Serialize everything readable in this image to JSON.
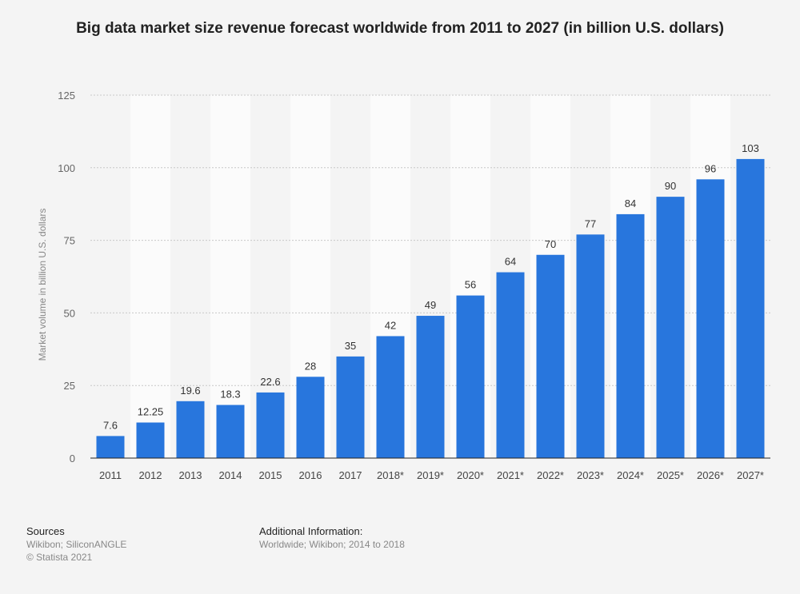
{
  "chart_data": {
    "type": "bar",
    "title": "Big data market size revenue forecast worldwide from 2011 to 2027 (in billion U.S. dollars)",
    "xlabel": "",
    "ylabel": "Market volume in billion U.S. dollars",
    "categories": [
      "2011",
      "2012",
      "2013",
      "2014",
      "2015",
      "2016",
      "2017",
      "2018*",
      "2019*",
      "2020*",
      "2021*",
      "2022*",
      "2023*",
      "2024*",
      "2025*",
      "2026*",
      "2027*"
    ],
    "values": [
      7.6,
      12.25,
      19.6,
      18.3,
      22.6,
      28,
      35,
      42,
      49,
      56,
      64,
      70,
      77,
      84,
      90,
      96,
      103
    ],
    "value_labels": [
      "7.6",
      "12.25",
      "19.6",
      "18.3",
      "22.6",
      "28",
      "35",
      "42",
      "49",
      "56",
      "64",
      "70",
      "77",
      "84",
      "90",
      "96",
      "103"
    ],
    "ylim": [
      0,
      125
    ],
    "yticks": [
      0,
      25,
      50,
      75,
      100,
      125
    ],
    "grid": true,
    "bar_color": "#2876dd"
  },
  "footer": {
    "sources_heading": "Sources",
    "sources_text": "Wikibon; SiliconANGLE",
    "copyright": "© Statista 2021",
    "additional_heading": "Additional Information:",
    "additional_text": "Worldwide; Wikibon; 2014 to 2018"
  }
}
